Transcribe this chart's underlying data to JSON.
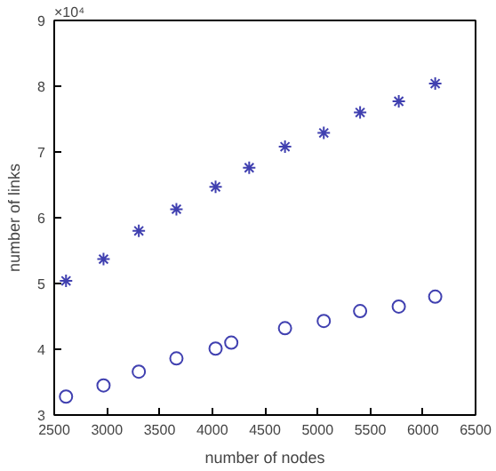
{
  "chart_data": {
    "type": "scatter",
    "xlabel": "number of nodes",
    "ylabel": "number of links",
    "annotations": [
      "×10⁴"
    ],
    "xlim": [
      2500,
      6500
    ],
    "xticks": [
      2500,
      3000,
      3500,
      4000,
      4500,
      5000,
      5500,
      6000,
      6500
    ],
    "ylim": [
      3,
      9
    ],
    "yticks": [
      3,
      4,
      5,
      6,
      7,
      8,
      9
    ],
    "grid": false,
    "series": [
      {
        "color": "#4040b0",
        "marker": "cross",
        "x": [
          2612,
          2968,
          3303,
          3660,
          4032,
          4351,
          4691,
          5059,
          5404,
          5771,
          6117
        ],
        "values": [
          5.04,
          5.37,
          5.8,
          6.13,
          6.47,
          6.76,
          7.08,
          7.29,
          7.6,
          7.77,
          8.04
        ]
      },
      {
        "color": "#4040b0",
        "marker": "circle",
        "x": [
          2612,
          2968,
          3303,
          3660,
          4032,
          4181,
          4691,
          5059,
          5404,
          5771,
          6117
        ],
        "values": [
          3.28,
          3.45,
          3.66,
          3.86,
          4.01,
          4.1,
          4.32,
          4.43,
          4.58,
          4.65,
          4.8
        ]
      }
    ]
  }
}
